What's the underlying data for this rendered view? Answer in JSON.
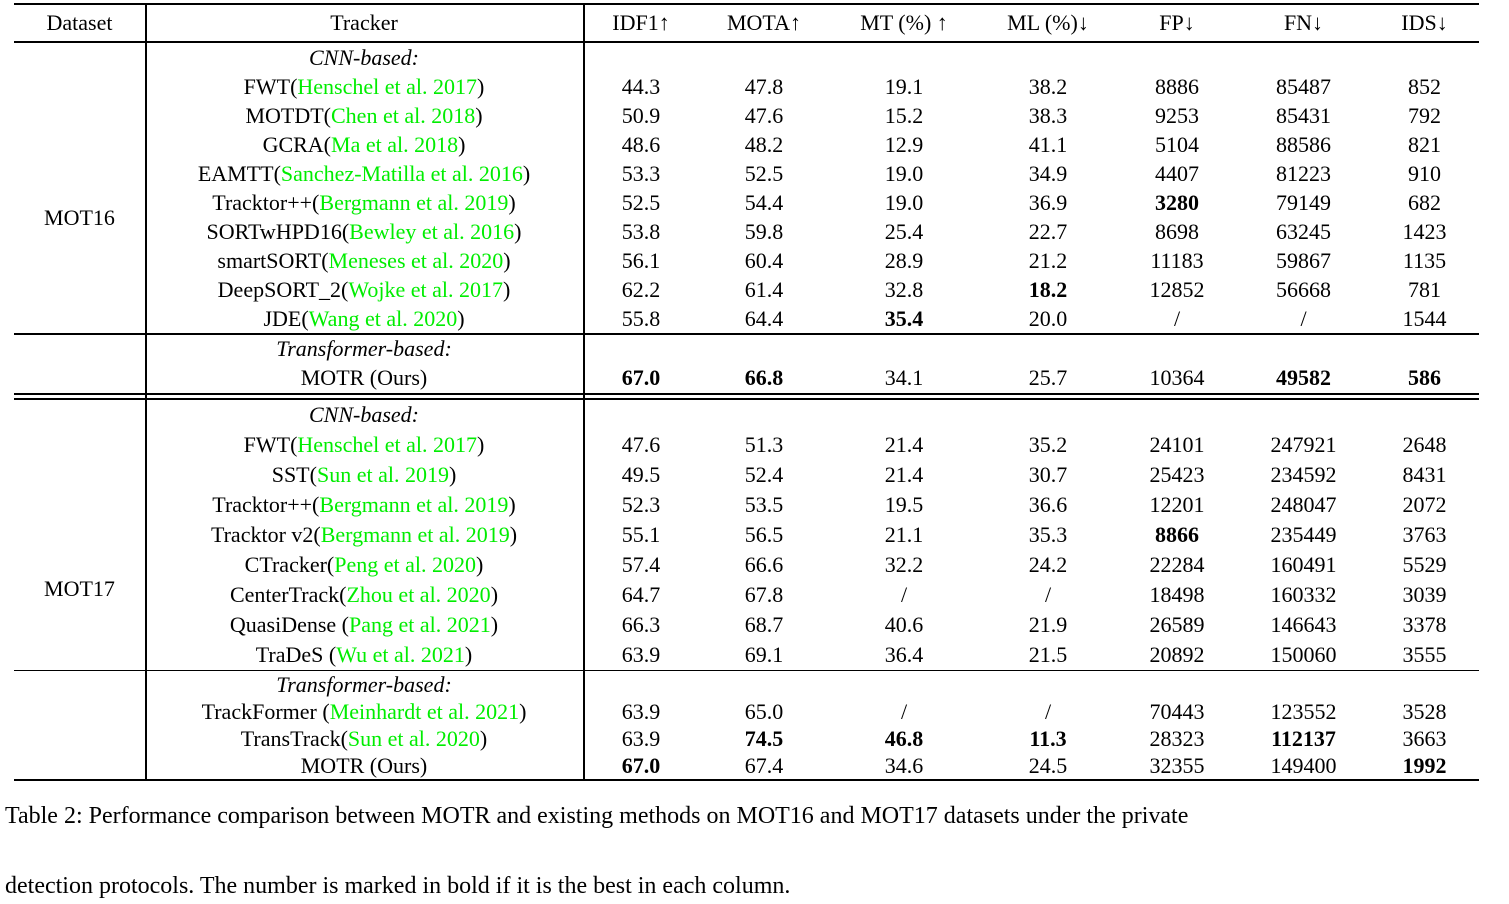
{
  "colors": {
    "citation_green": "#00ed00",
    "text": "#000000"
  },
  "table": {
    "columns": [
      "Dataset",
      "Tracker",
      "IDF1↑",
      "MOTA↑",
      "MT (%) ↑",
      "ML (%)↓",
      "FP↓",
      "FN↓",
      "IDS↓"
    ],
    "sections": [
      {
        "dataset": "MOT16",
        "groups": [
          {
            "label": "CNN-based:",
            "rows": [
              {
                "prefix": "FWT(",
                "cite": "Henschel et al. 2017",
                "suffix": ")",
                "values": [
                  "44.3",
                  "47.8",
                  "19.1",
                  "38.2",
                  "8886",
                  "85487",
                  "852"
                ],
                "bold": []
              },
              {
                "prefix": "MOTDT(",
                "cite": "Chen et al. 2018",
                "suffix": ")",
                "values": [
                  "50.9",
                  "47.6",
                  "15.2",
                  "38.3",
                  "9253",
                  "85431",
                  "792"
                ],
                "bold": []
              },
              {
                "prefix": "GCRA(",
                "cite": "Ma et al. 2018",
                "suffix": ")",
                "values": [
                  "48.6",
                  "48.2",
                  "12.9",
                  "41.1",
                  "5104",
                  "88586",
                  "821"
                ],
                "bold": []
              },
              {
                "prefix": "EAMTT(",
                "cite": "Sanchez-Matilla et al. 2016",
                "suffix": ")",
                "values": [
                  "53.3",
                  "52.5",
                  "19.0",
                  "34.9",
                  "4407",
                  "81223",
                  "910"
                ],
                "bold": []
              },
              {
                "prefix": "Tracktor++(",
                "cite": "Bergmann et al. 2019",
                "suffix": ")",
                "values": [
                  "52.5",
                  "54.4",
                  "19.0",
                  "36.9",
                  "3280",
                  "79149",
                  "682"
                ],
                "bold": [
                  4
                ]
              },
              {
                "prefix": "SORTwHPD16(",
                "cite": "Bewley et al. 2016",
                "suffix": ")",
                "values": [
                  "53.8",
                  "59.8",
                  "25.4",
                  "22.7",
                  "8698",
                  "63245",
                  "1423"
                ],
                "bold": []
              },
              {
                "prefix": "smartSORT(",
                "cite": "Meneses et al. 2020",
                "suffix": ")",
                "values": [
                  "56.1",
                  "60.4",
                  "28.9",
                  "21.2",
                  "11183",
                  "59867",
                  "1135"
                ],
                "bold": []
              },
              {
                "prefix": "DeepSORT_2(",
                "cite": "Wojke et al. 2017",
                "suffix": ")",
                "values": [
                  "62.2",
                  "61.4",
                  "32.8",
                  "18.2",
                  "12852",
                  "56668",
                  "781"
                ],
                "bold": [
                  3
                ]
              },
              {
                "prefix": "JDE(",
                "cite": "Wang et al. 2020",
                "suffix": ")",
                "values": [
                  "55.8",
                  "64.4",
                  "35.4",
                  "20.0",
                  "/",
                  "/",
                  "1544"
                ],
                "bold": [
                  2
                ]
              }
            ]
          },
          {
            "label": "Transformer-based:",
            "rows": [
              {
                "prefix": "MOTR (Ours)",
                "cite": "",
                "suffix": "",
                "values": [
                  "67.0",
                  "66.8",
                  "34.1",
                  "25.7",
                  "10364",
                  "49582",
                  "586"
                ],
                "bold": [
                  0,
                  1,
                  5,
                  6
                ]
              }
            ]
          }
        ]
      },
      {
        "dataset": "MOT17",
        "groups": [
          {
            "label": "CNN-based:",
            "rows": [
              {
                "prefix": "FWT(",
                "cite": "Henschel et al. 2017",
                "suffix": ")",
                "values": [
                  "47.6",
                  "51.3",
                  "21.4",
                  "35.2",
                  "24101",
                  "247921",
                  "2648"
                ],
                "bold": []
              },
              {
                "prefix": "SST(",
                "cite": "Sun et al. 2019",
                "suffix": ")",
                "values": [
                  "49.5",
                  "52.4",
                  "21.4",
                  "30.7",
                  "25423",
                  "234592",
                  "8431"
                ],
                "bold": []
              },
              {
                "prefix": "Tracktor++(",
                "cite": "Bergmann et al. 2019",
                "suffix": ")",
                "values": [
                  "52.3",
                  "53.5",
                  "19.5",
                  "36.6",
                  "12201",
                  "248047",
                  "2072"
                ],
                "bold": []
              },
              {
                "prefix": "Tracktor v2(",
                "cite": "Bergmann et al. 2019",
                "suffix": ")",
                "values": [
                  "55.1",
                  "56.5",
                  "21.1",
                  "35.3",
                  "8866",
                  "235449",
                  "3763"
                ],
                "bold": [
                  4
                ]
              },
              {
                "prefix": "CTracker(",
                "cite": "Peng et al. 2020",
                "suffix": ")",
                "values": [
                  "57.4",
                  "66.6",
                  "32.2",
                  "24.2",
                  "22284",
                  "160491",
                  "5529"
                ],
                "bold": []
              },
              {
                "prefix": "CenterTrack(",
                "cite": "Zhou et al. 2020",
                "suffix": ")",
                "values": [
                  "64.7",
                  "67.8",
                  "/",
                  "/",
                  "18498",
                  "160332",
                  "3039"
                ],
                "bold": []
              },
              {
                "prefix": "QuasiDense (",
                "cite": "Pang et al. 2021",
                "suffix": ")",
                "values": [
                  "66.3",
                  "68.7",
                  "40.6",
                  "21.9",
                  "26589",
                  "146643",
                  "3378"
                ],
                "bold": []
              },
              {
                "prefix": "TraDeS (",
                "cite": "Wu et al. 2021",
                "suffix": ")",
                "values": [
                  "63.9",
                  "69.1",
                  "36.4",
                  "21.5",
                  "20892",
                  "150060",
                  "3555"
                ],
                "bold": []
              }
            ]
          },
          {
            "label": "Transformer-based:",
            "rows": [
              {
                "prefix": "TrackFormer (",
                "cite": "Meinhardt et al. 2021",
                "suffix": ")",
                "values": [
                  "63.9",
                  "65.0",
                  "/",
                  "/",
                  "70443",
                  "123552",
                  "3528"
                ],
                "bold": []
              },
              {
                "prefix": "TransTrack(",
                "cite": "Sun et al. 2020",
                "suffix": ")",
                "values": [
                  "63.9",
                  "74.5",
                  "46.8",
                  "11.3",
                  "28323",
                  "112137",
                  "3663"
                ],
                "bold": [
                  1,
                  2,
                  3,
                  5
                ]
              },
              {
                "prefix": "MOTR (Ours)",
                "cite": "",
                "suffix": "",
                "values": [
                  "67.0",
                  "67.4",
                  "34.6",
                  "24.5",
                  "32355",
                  "149400",
                  "1992"
                ],
                "bold": [
                  0,
                  6
                ]
              }
            ]
          }
        ]
      }
    ]
  },
  "caption": {
    "line1": "Table 2: Performance comparison between MOTR and existing methods on MOT16 and MOT17 datasets under the private",
    "line2": "detection protocols. The number is marked in bold if it is the best in each column."
  }
}
